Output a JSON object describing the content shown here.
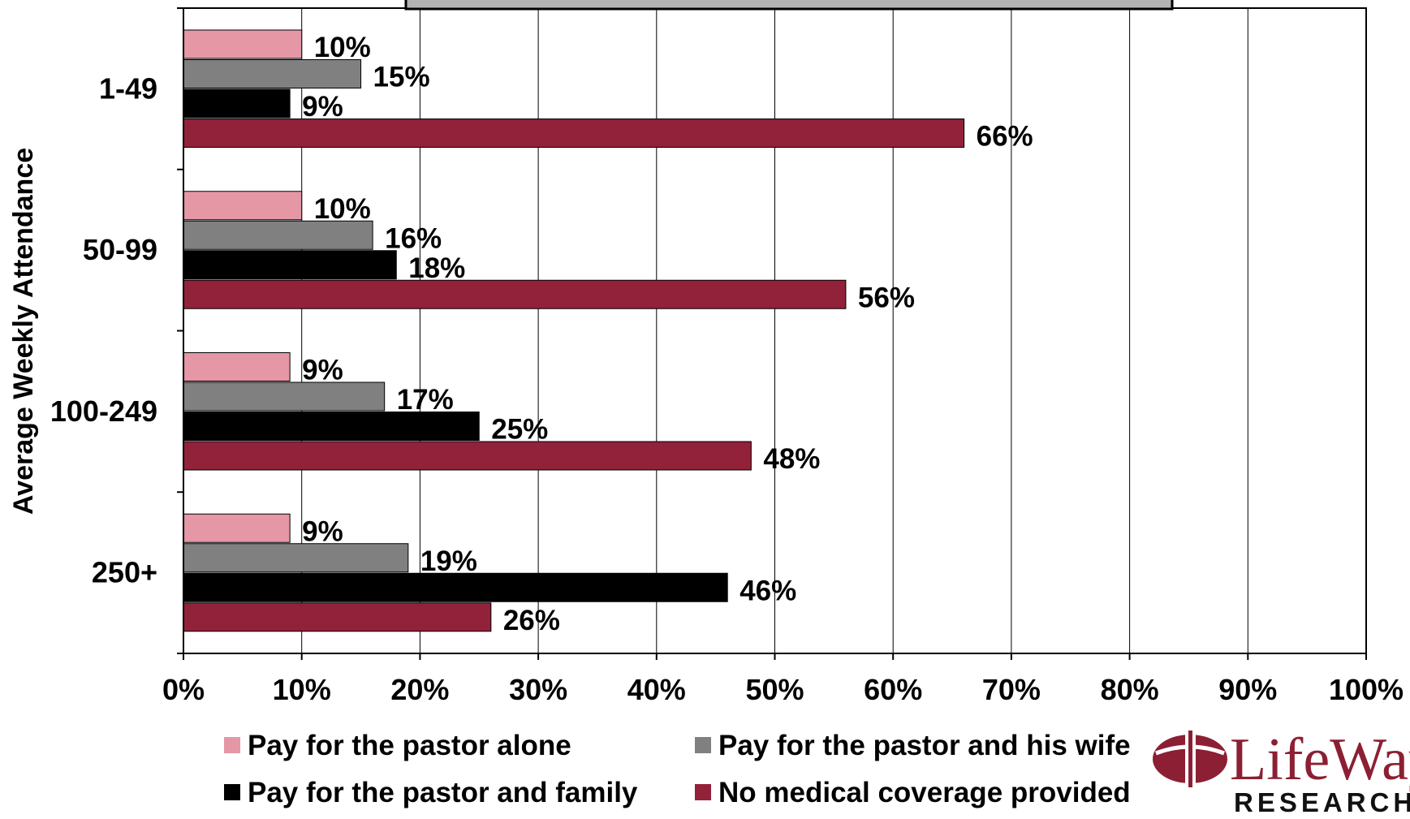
{
  "chart_data": {
    "type": "bar",
    "orientation": "horizontal",
    "ylabel": "Average Weekly Attendance",
    "categories": [
      "1-49",
      "50-99",
      "100-249",
      "250+"
    ],
    "xlim": [
      0,
      100
    ],
    "x_ticks": [
      "0%",
      "10%",
      "20%",
      "30%",
      "40%",
      "50%",
      "60%",
      "70%",
      "80%",
      "90%",
      "100%"
    ],
    "grid": "vertical",
    "legend_position": "bottom",
    "series": [
      {
        "name": "Pay for the pastor alone",
        "color": "#e597a6",
        "values": [
          10,
          10,
          9,
          9
        ],
        "labels": [
          "10%",
          "10%",
          "9%",
          "9%"
        ]
      },
      {
        "name": "Pay for the pastor and his wife",
        "color": "#808080",
        "values": [
          15,
          16,
          17,
          19
        ],
        "labels": [
          "15%",
          "16%",
          "17%",
          "19%"
        ]
      },
      {
        "name": "Pay for the pastor and family",
        "color": "#000000",
        "values": [
          9,
          18,
          25,
          46
        ],
        "labels": [
          "9%",
          "18%",
          "25%",
          "46%"
        ]
      },
      {
        "name": "No medical coverage provided",
        "color": "#92213a",
        "values": [
          66,
          56,
          48,
          26
        ],
        "labels": [
          "66%",
          "56%",
          "48%",
          "26%"
        ]
      }
    ]
  },
  "logo": {
    "wordmark": "LifeWay",
    "subtitle": "RESEARCH",
    "icon": "cross-globe-icon",
    "color": "#8c1f33"
  }
}
